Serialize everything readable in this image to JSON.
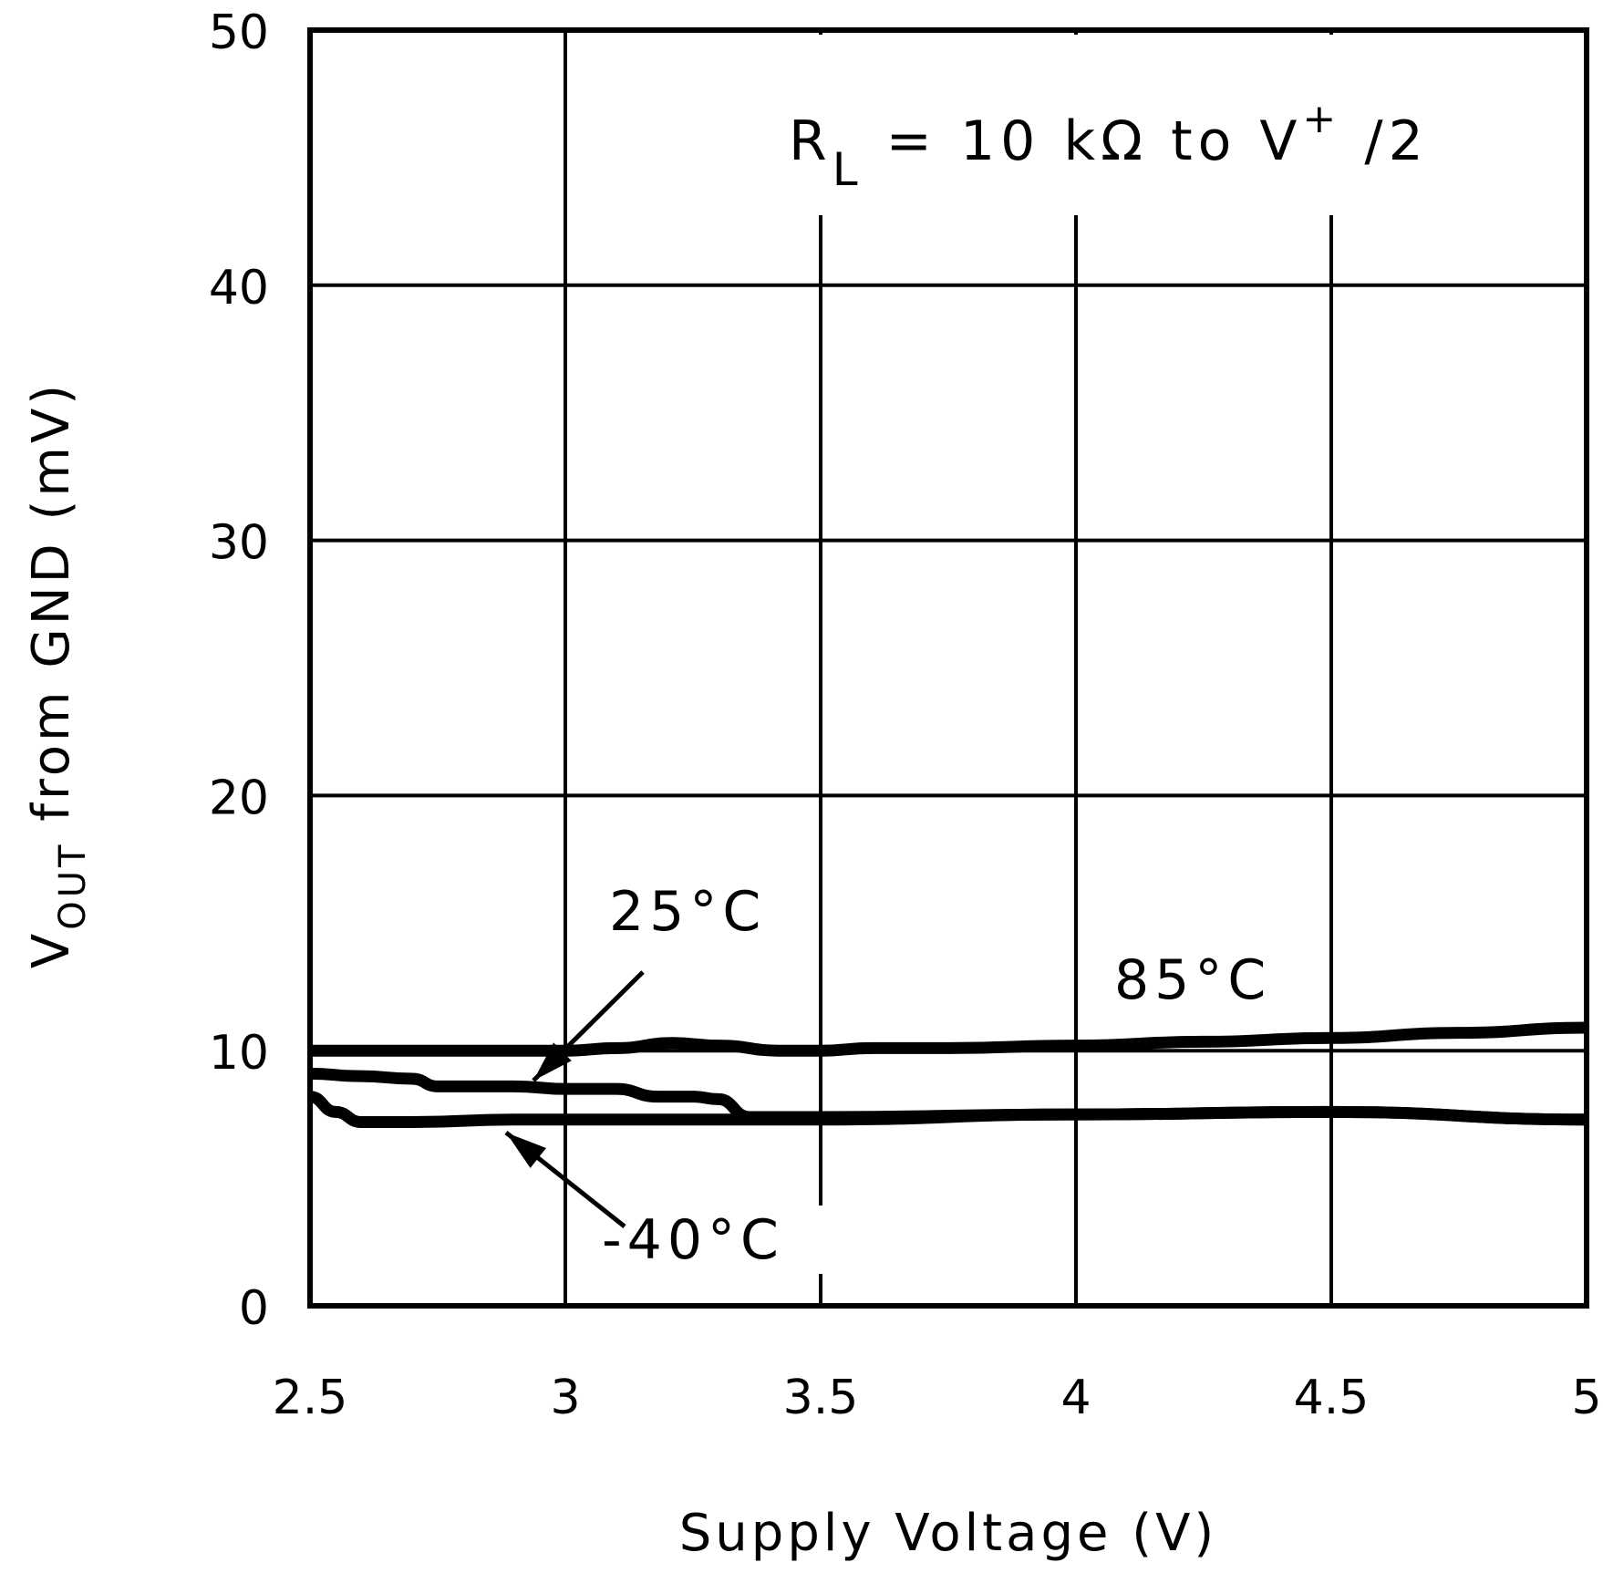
{
  "chart_data": {
    "type": "line",
    "title": "",
    "xlabel": "Supply Voltage (V)",
    "ylabel": "VOUT from GND (mV)",
    "ylabel_parts": {
      "main": "V",
      "sub": "OUT",
      "rest": " from GND (mV)"
    },
    "xlim": [
      2.5,
      5
    ],
    "ylim": [
      0,
      50
    ],
    "grid": true,
    "x_ticks": [
      "2.5",
      "3",
      "3.5",
      "4",
      "4.5",
      "5"
    ],
    "y_ticks": [
      "0",
      "10",
      "20",
      "30",
      "40",
      "50"
    ],
    "annotation": {
      "text_main": "R",
      "text_sub": "L",
      "text_rest": " =  10 kΩ  to  V",
      "text_sup": "+",
      "text_end": " /2"
    },
    "series": [
      {
        "name": "85°C",
        "x": [
          2.5,
          2.75,
          3.0,
          3.1,
          3.21,
          3.3,
          3.42,
          3.5,
          3.6,
          3.75,
          4.0,
          4.25,
          4.5,
          4.75,
          5.0
        ],
        "y": [
          10.0,
          10.0,
          10.0,
          10.1,
          10.3,
          10.2,
          10.0,
          10.0,
          10.1,
          10.1,
          10.2,
          10.35,
          10.5,
          10.7,
          10.9
        ]
      },
      {
        "name": "25°C",
        "x": [
          2.5,
          2.6,
          2.7,
          2.75,
          2.9,
          3.0,
          3.1,
          3.18,
          3.25,
          3.3,
          3.36,
          3.5,
          4.0,
          4.5,
          5.0
        ],
        "y": [
          9.1,
          9.0,
          8.9,
          8.6,
          8.6,
          8.5,
          8.5,
          8.2,
          8.2,
          8.1,
          7.4,
          7.4,
          7.5,
          7.6,
          7.3
        ]
      },
      {
        "name": "-40°C",
        "x": [
          2.5,
          2.55,
          2.6,
          2.7,
          2.9,
          3.0,
          3.5,
          4.0,
          4.5,
          5.0
        ],
        "y": [
          8.2,
          7.6,
          7.2,
          7.2,
          7.3,
          7.3,
          7.3,
          7.5,
          7.6,
          7.3
        ]
      }
    ],
    "labels": [
      {
        "text": "25°C",
        "target_series": "25°C"
      },
      {
        "text": "85°C",
        "target_series": "85°C"
      },
      {
        "text": "-40°C",
        "target_series": "-40°C"
      }
    ]
  }
}
